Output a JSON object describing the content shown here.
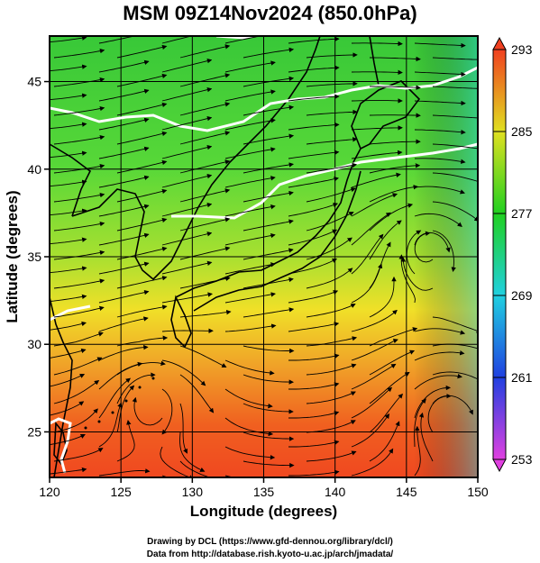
{
  "title": "MSM 09Z14Nov2024 (850.0hPa)",
  "xaxis": {
    "label": "Longitude (degrees)",
    "range": [
      120,
      150
    ],
    "ticks": [
      120,
      125,
      130,
      135,
      140,
      145,
      150
    ],
    "tick_labels": [
      "120",
      "125",
      "130",
      "135",
      "140",
      "145",
      "150"
    ]
  },
  "yaxis": {
    "label": "Latitude  (degrees)",
    "range": [
      22.4,
      47.6
    ],
    "ticks": [
      25,
      30,
      35,
      40,
      45
    ],
    "tick_labels": [
      "25",
      "30",
      "35",
      "40",
      "45"
    ]
  },
  "colorbar": {
    "range": [
      253,
      293
    ],
    "ticks": [
      253,
      261,
      269,
      277,
      285,
      293
    ],
    "tick_labels": [
      "253",
      "261",
      "269",
      "277",
      "285",
      "293"
    ],
    "colors": [
      "#e040e0",
      "#2040e0",
      "#20d0e0",
      "#20d020",
      "#e0e020",
      "#f04020"
    ]
  },
  "credits": {
    "line1": "Drawing by DCL (https://www.gfd-dennou.org/library/dcl/)",
    "line2": "Data from http://database.rish.kyoto-u.ac.jp/arch/jmadata/"
  },
  "colors": {
    "north": "#40c830",
    "mid": "#a8e030",
    "south_yellow": "#f0e028",
    "south_orange": "#f08828",
    "south_red": "#f04820",
    "isotherm": "#ffffff",
    "coast": "#000000"
  }
}
